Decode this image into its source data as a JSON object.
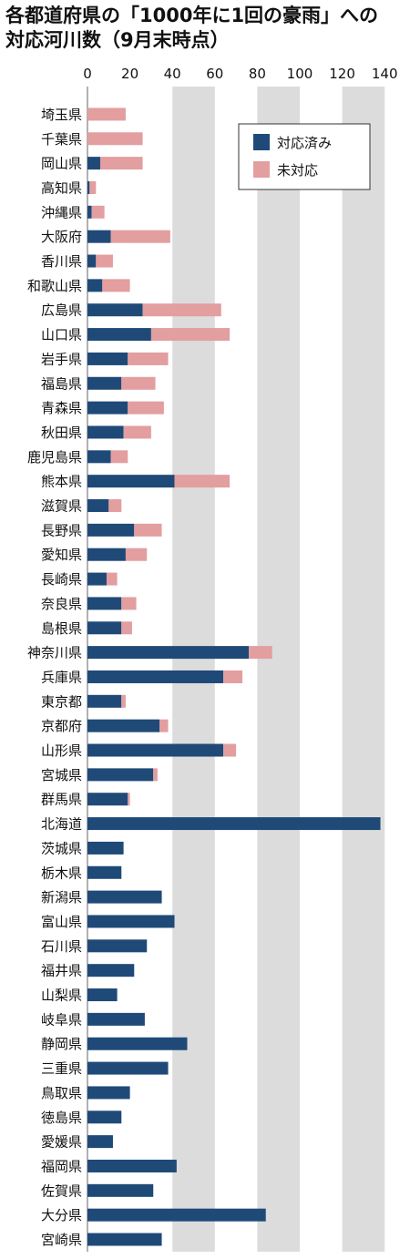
{
  "title": {
    "line1": "各都道府県の「1000年に1回の豪雨」への",
    "line2": "対応河川数（9月末時点）"
  },
  "colors": {
    "done": "#1f4a78",
    "notdone": "#e39ea0",
    "band": "#dcdcdc"
  },
  "chart_data": {
    "type": "bar",
    "orientation": "horizontal",
    "stacked": true,
    "title": "各都道府県の「1000年に1回の豪雨」への対応河川数（9月末時点）",
    "xlabel": "",
    "ylabel": "",
    "xlim": [
      0,
      140
    ],
    "xticks": [
      "0",
      "20",
      "40",
      "60",
      "80",
      "100",
      "120",
      "140"
    ],
    "legend_position": "top-right",
    "categories": [
      "埼玉県",
      "千葉県",
      "岡山県",
      "高知県",
      "沖縄県",
      "大阪府",
      "香川県",
      "和歌山県",
      "広島県",
      "山口県",
      "岩手県",
      "福島県",
      "青森県",
      "秋田県",
      "鹿児島県",
      "熊本県",
      "滋賀県",
      "長野県",
      "愛知県",
      "長崎県",
      "奈良県",
      "島根県",
      "神奈川県",
      "兵庫県",
      "東京都",
      "京都府",
      "山形県",
      "宮城県",
      "群馬県",
      "北海道",
      "茨城県",
      "栃木県",
      "新潟県",
      "富山県",
      "石川県",
      "福井県",
      "山梨県",
      "岐阜県",
      "静岡県",
      "三重県",
      "鳥取県",
      "徳島県",
      "愛媛県",
      "福岡県",
      "佐賀県",
      "大分県",
      "宮崎県"
    ],
    "series": [
      {
        "name": "対応済み",
        "values": [
          0,
          0,
          6,
          1,
          2,
          11,
          4,
          7,
          26,
          30,
          19,
          16,
          19,
          17,
          11,
          41,
          10,
          22,
          18,
          9,
          16,
          16,
          76,
          64,
          16,
          34,
          64,
          31,
          19,
          138,
          17,
          16,
          35,
          41,
          28,
          22,
          14,
          27,
          47,
          38,
          20,
          16,
          12,
          42,
          31,
          84,
          35
        ]
      },
      {
        "name": "未対応",
        "values": [
          18,
          26,
          20,
          3,
          6,
          28,
          8,
          13,
          37,
          37,
          19,
          16,
          17,
          13,
          8,
          26,
          6,
          13,
          10,
          5,
          7,
          5,
          11,
          9,
          2,
          4,
          6,
          2,
          1,
          0,
          0,
          0,
          0,
          0,
          0,
          0,
          0,
          0,
          0,
          0,
          0,
          0,
          0,
          0,
          0,
          0,
          0
        ]
      }
    ]
  }
}
